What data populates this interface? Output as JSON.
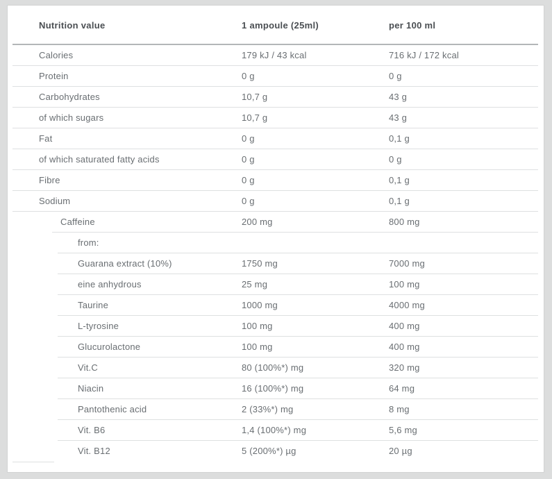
{
  "chart_data": {
    "type": "table",
    "title": "Nutrition value",
    "columns": [
      "Nutrition value",
      "1 ampoule (25ml)",
      "per 100 ml"
    ],
    "rows": [
      [
        "Calories",
        "179 kJ / 43 kcal",
        "716 kJ / 172 kcal"
      ],
      [
        "Protein",
        "0 g",
        "0 g"
      ],
      [
        "Carbohydrates",
        "10,7 g",
        "43 g"
      ],
      [
        "of which sugars",
        "10,7 g",
        "43 g"
      ],
      [
        "Fat",
        "0 g",
        "0,1 g"
      ],
      [
        "of which saturated fatty acids",
        "0 g",
        "0 g"
      ],
      [
        "Fibre",
        "0 g",
        "0,1 g"
      ],
      [
        "Sodium",
        "0 g",
        "0,1 g"
      ],
      [
        "Caffeine",
        "200 mg",
        "800 mg"
      ],
      [
        "from:",
        "",
        ""
      ],
      [
        "Guarana extract (10%)",
        "1750 mg",
        "7000 mg"
      ],
      [
        "eine anhydrous",
        "25 mg",
        "100 mg"
      ],
      [
        "Taurine",
        "1000 mg",
        "4000 mg"
      ],
      [
        "L-tyrosine",
        "100 mg",
        "400 mg"
      ],
      [
        "Glucurolactone",
        "100 mg",
        "400 mg"
      ],
      [
        "Vit.C",
        "80 (100%*) mg",
        "320 mg"
      ],
      [
        "Niacin",
        "16 (100%*) mg",
        "64 mg"
      ],
      [
        "Pantothenic acid",
        "2 (33%*) mg",
        "8 mg"
      ],
      [
        "Vit. B6",
        "1,4 (100%*) mg",
        "5,6 mg"
      ],
      [
        "Vit. B12",
        "5 (200%*) µg",
        "20 µg"
      ]
    ],
    "layout": {
      "grid": "horizontal-row-separators",
      "legend": "none"
    }
  }
}
